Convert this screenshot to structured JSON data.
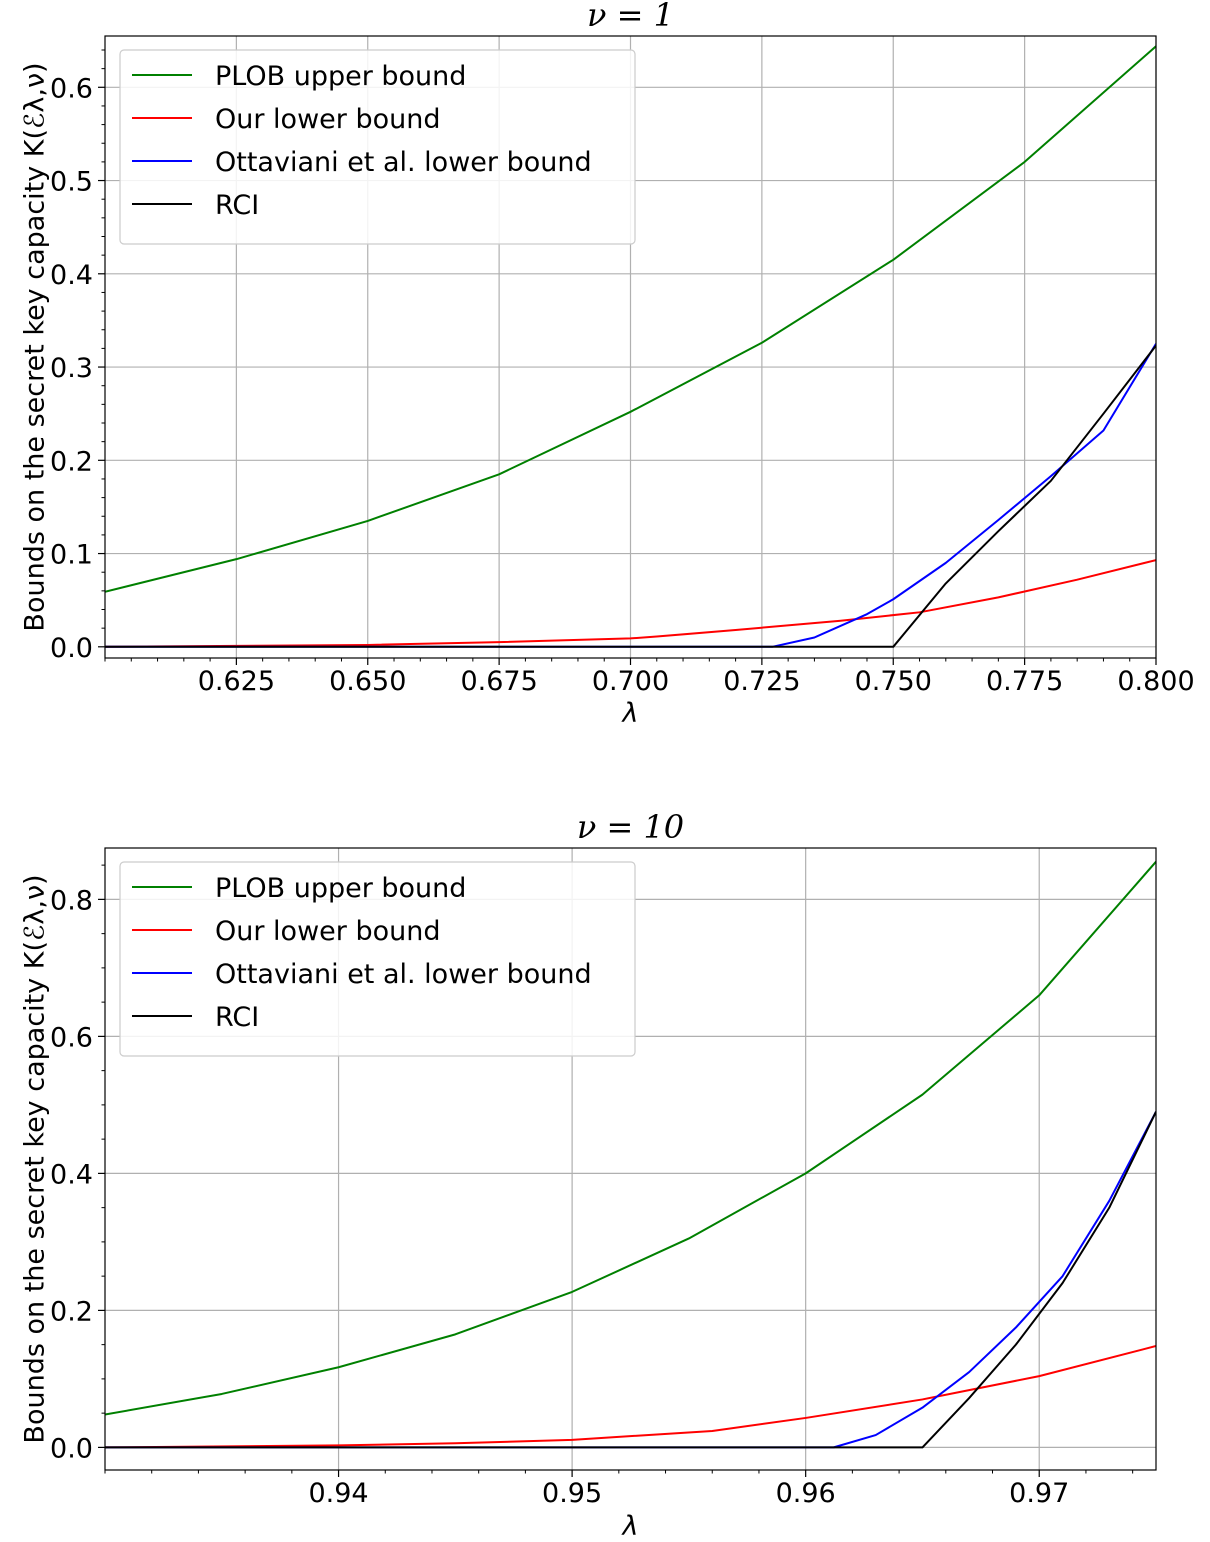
{
  "chart_data": [
    {
      "type": "line",
      "title": "ν = 1",
      "xlabel": "λ",
      "ylabel": "Bounds on the secret key capacity K(ℰλ,ν)",
      "xlim": [
        0.6,
        0.8
      ],
      "ylim": [
        -0.012,
        0.655
      ],
      "xticks": [
        0.625,
        0.65,
        0.675,
        0.7,
        0.725,
        0.75,
        0.775,
        0.8
      ],
      "xtick_labels": [
        "0.625",
        "0.650",
        "0.675",
        "0.700",
        "0.725",
        "0.750",
        "0.775",
        "0.800"
      ],
      "yticks": [
        0.0,
        0.1,
        0.2,
        0.3,
        0.4,
        0.5,
        0.6
      ],
      "ytick_labels": [
        "0.0",
        "0.1",
        "0.2",
        "0.3",
        "0.4",
        "0.5",
        "0.6"
      ],
      "grid": true,
      "legend_position": "top-left",
      "series": [
        {
          "name": "PLOB upper bound",
          "color": "#008000",
          "x": [
            0.6,
            0.625,
            0.65,
            0.675,
            0.7,
            0.725,
            0.75,
            0.775,
            0.8
          ],
          "y": [
            0.059,
            0.094,
            0.135,
            0.185,
            0.252,
            0.326,
            0.415,
            0.52,
            0.644
          ]
        },
        {
          "name": "Our lower bound",
          "color": "#ff0000",
          "x": [
            0.6,
            0.65,
            0.675,
            0.7,
            0.705,
            0.72,
            0.74,
            0.755,
            0.77,
            0.785,
            0.8
          ],
          "y": [
            0.0,
            0.002,
            0.005,
            0.009,
            0.011,
            0.018,
            0.028,
            0.037,
            0.053,
            0.072,
            0.093
          ]
        },
        {
          "name": "Ottaviani et al. lower bound",
          "color": "#0000ff",
          "x": [
            0.6,
            0.7,
            0.727,
            0.735,
            0.745,
            0.75,
            0.76,
            0.77,
            0.78,
            0.79,
            0.8
          ],
          "y": [
            0.0,
            0.0,
            0.0,
            0.01,
            0.035,
            0.051,
            0.09,
            0.136,
            0.183,
            0.232,
            0.325
          ]
        },
        {
          "name": "RCI",
          "color": "#000000",
          "x": [
            0.6,
            0.7,
            0.75,
            0.76,
            0.77,
            0.78,
            0.79,
            0.8
          ],
          "y": [
            0.0,
            0.0,
            0.0,
            0.068,
            0.124,
            0.178,
            0.25,
            0.323
          ]
        }
      ]
    },
    {
      "type": "line",
      "title": "ν = 10",
      "xlabel": "λ",
      "ylabel": "Bounds on the secret key capacity K(ℰλ,ν)",
      "xlim": [
        0.93,
        0.975
      ],
      "ylim": [
        -0.033,
        0.875
      ],
      "xticks": [
        0.94,
        0.95,
        0.96,
        0.97
      ],
      "xtick_labels": [
        "0.94",
        "0.95",
        "0.96",
        "0.97"
      ],
      "yticks": [
        0.0,
        0.2,
        0.4,
        0.6,
        0.8
      ],
      "ytick_labels": [
        "0.0",
        "0.2",
        "0.4",
        "0.6",
        "0.8"
      ],
      "grid": true,
      "legend_position": "top-left",
      "series": [
        {
          "name": "PLOB upper bound",
          "color": "#008000",
          "x": [
            0.93,
            0.935,
            0.94,
            0.945,
            0.95,
            0.955,
            0.96,
            0.965,
            0.97,
            0.975
          ],
          "y": [
            0.048,
            0.078,
            0.117,
            0.165,
            0.227,
            0.305,
            0.4,
            0.515,
            0.66,
            0.855
          ]
        },
        {
          "name": "Our lower bound",
          "color": "#ff0000",
          "x": [
            0.93,
            0.94,
            0.945,
            0.95,
            0.956,
            0.96,
            0.965,
            0.97,
            0.975
          ],
          "y": [
            0.0,
            0.003,
            0.006,
            0.011,
            0.024,
            0.043,
            0.07,
            0.104,
            0.148
          ]
        },
        {
          "name": "Ottaviani et al. lower bound",
          "color": "#0000ff",
          "x": [
            0.93,
            0.955,
            0.9612,
            0.963,
            0.965,
            0.967,
            0.969,
            0.971,
            0.973,
            0.975
          ],
          "y": [
            0.0,
            0.0,
            0.0,
            0.018,
            0.058,
            0.11,
            0.175,
            0.25,
            0.36,
            0.49
          ]
        },
        {
          "name": "RCI",
          "color": "#000000",
          "x": [
            0.93,
            0.955,
            0.965,
            0.967,
            0.969,
            0.971,
            0.973,
            0.975
          ],
          "y": [
            0.0,
            0.0,
            0.0,
            0.072,
            0.15,
            0.24,
            0.35,
            0.49
          ]
        }
      ]
    }
  ]
}
